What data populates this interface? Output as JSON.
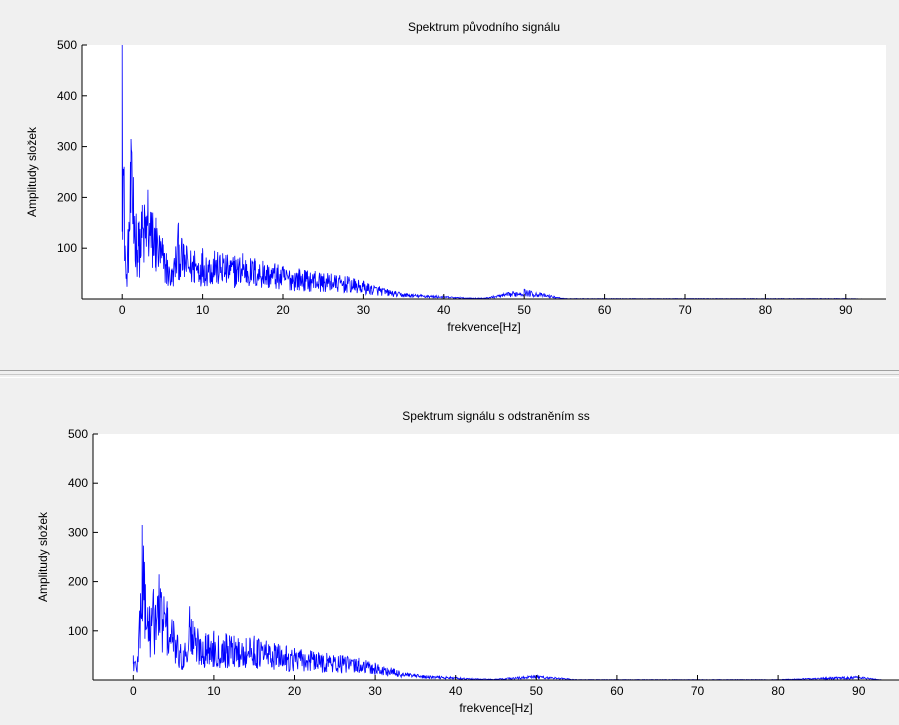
{
  "chart_data": [
    {
      "type": "line",
      "title": "Spektrum původního signálu",
      "xlabel": "frekvence[Hz]",
      "ylabel": "Amplitudy složek",
      "xlim": [
        -5,
        95
      ],
      "ylim": [
        0,
        500
      ],
      "xticks": [
        0,
        10,
        20,
        30,
        40,
        50,
        60,
        70,
        80,
        90
      ],
      "yticks": [
        100,
        200,
        300,
        400,
        500
      ],
      "x_tick_labels": [
        "0",
        "10",
        "20",
        "30",
        "40",
        "50",
        "60",
        "70",
        "80",
        "90"
      ],
      "y_tick_labels": [
        "100",
        "200",
        "300",
        "400",
        "500"
      ],
      "grid": false,
      "color": "#0000ff",
      "series": [
        {
          "x": [
            0,
            0.5,
            1.1,
            1.4,
            2.0,
            2.5,
            3.2,
            3.8,
            4.2,
            5.0,
            5.5,
            6.2,
            7.0,
            7.4,
            8.0,
            9.0,
            10.0,
            11.5,
            12.5,
            14.0,
            15.0,
            16.5,
            17.5,
            19.0,
            20.0,
            22.0,
            24.0,
            26.0,
            28.0,
            30.0,
            32.0,
            34.0,
            36.0,
            38.0,
            40.0,
            42.0,
            45.0,
            50.0,
            55.0,
            60.0,
            70.0,
            80.0,
            90.0,
            93.0
          ],
          "y": [
            500,
            40,
            315,
            240,
            150,
            185,
            215,
            170,
            160,
            120,
            90,
            60,
            150,
            120,
            105,
            95,
            100,
            95,
            90,
            85,
            90,
            80,
            75,
            70,
            65,
            60,
            55,
            50,
            45,
            35,
            25,
            15,
            10,
            8,
            6,
            3,
            2,
            20,
            1,
            1,
            1,
            1,
            1,
            0
          ]
        }
      ]
    },
    {
      "type": "line",
      "title": "Spektrum signálu s odstraněním ss",
      "xlabel": "frekvence[Hz]",
      "ylabel": "Amplitudy složek",
      "xlim": [
        -5,
        95
      ],
      "ylim": [
        0,
        500
      ],
      "xticks": [
        0,
        10,
        20,
        30,
        40,
        50,
        60,
        70,
        80,
        90
      ],
      "yticks": [
        100,
        200,
        300,
        400,
        500
      ],
      "x_tick_labels": [
        "0",
        "10",
        "20",
        "30",
        "40",
        "50",
        "60",
        "70",
        "80",
        "90"
      ],
      "y_tick_labels": [
        "100",
        "200",
        "300",
        "400",
        "500"
      ],
      "grid": false,
      "color": "#0000ff",
      "series": [
        {
          "x": [
            0,
            0.5,
            1.1,
            1.4,
            2.0,
            2.5,
            3.2,
            3.8,
            4.2,
            5.0,
            5.5,
            6.2,
            7.0,
            7.4,
            8.0,
            9.0,
            10.0,
            11.5,
            12.5,
            14.0,
            15.0,
            16.5,
            17.5,
            19.0,
            20.0,
            22.0,
            24.0,
            26.0,
            28.0,
            30.0,
            32.0,
            34.0,
            36.0,
            38.0,
            40.0,
            42.0,
            45.0,
            50.0,
            55.0,
            60.0,
            70.0,
            80.0,
            90.0,
            93.0
          ],
          "y": [
            50,
            40,
            315,
            240,
            150,
            185,
            215,
            170,
            160,
            120,
            90,
            60,
            150,
            120,
            105,
            95,
            100,
            95,
            90,
            85,
            90,
            80,
            75,
            70,
            65,
            60,
            55,
            50,
            45,
            35,
            25,
            15,
            10,
            8,
            6,
            3,
            2,
            10,
            1,
            1,
            1,
            1,
            8,
            0
          ]
        }
      ]
    }
  ]
}
